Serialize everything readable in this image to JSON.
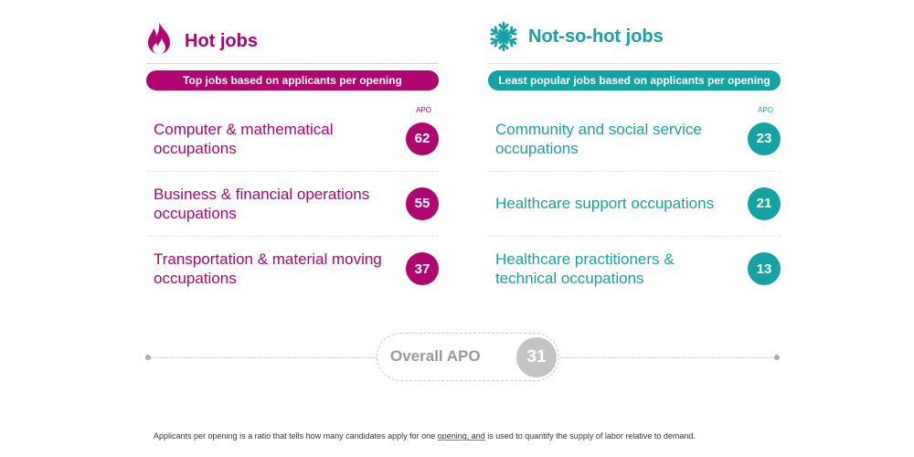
{
  "hot": {
    "title": "Hot jobs",
    "subtitle": "Top jobs based on applicants per opening",
    "apo_label": "APO",
    "icon": "flame-icon",
    "items": [
      {
        "name": "Computer & mathematical occupations",
        "apo": "62"
      },
      {
        "name": "Business & financial operations occupations",
        "apo": "55"
      },
      {
        "name": "Transportation & material moving occupations",
        "apo": "37"
      }
    ]
  },
  "cold": {
    "title": "Not-so-hot jobs",
    "subtitle": "Least popular jobs based on applicants per opening",
    "apo_label": "APO",
    "icon": "snowflake-icon",
    "items": [
      {
        "name": "Community and social service occupations",
        "apo": "23"
      },
      {
        "name": "Healthcare support occupations",
        "apo": "21"
      },
      {
        "name": "Healthcare practitioners & technical occupations",
        "apo": "13"
      }
    ]
  },
  "overall": {
    "label": "Overall APO",
    "value": "31"
  },
  "footnote": {
    "pre": "Applicants per opening is a ratio that tells how many candidates apply for one ",
    "link": "opening, and",
    "post": " is used to quantify the supply of labor relative to demand."
  },
  "colors": {
    "hot": "#b0056f",
    "cold": "#14a3a3",
    "overall": "#c4c4c4"
  }
}
